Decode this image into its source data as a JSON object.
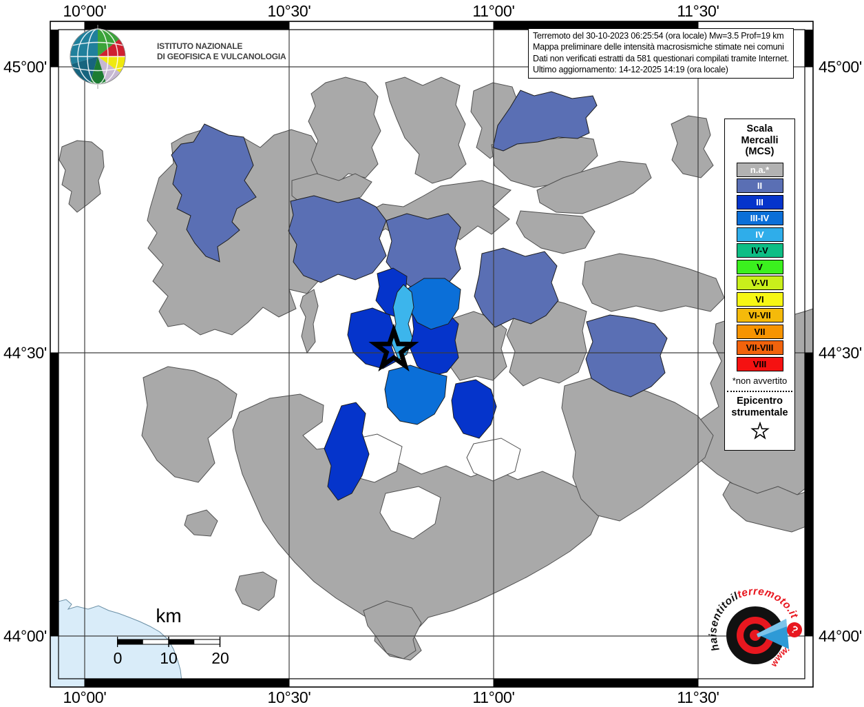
{
  "info_box": {
    "lines": [
      "Terremoto del 30-10-2023 06:25:54 (ora locale) Mw=3.5 Prof=19 km",
      "Mappa preliminare delle intensità macrosismiche stimate nei comuni",
      "Dati non verificati estratti da 581 questionari compilati tramite Internet.",
      "Ultimo aggiornamento: 14-12-2025 14:19 (ora locale)"
    ]
  },
  "legend": {
    "title_lines": [
      "Scala",
      "Mercalli",
      "(MCS)"
    ],
    "items": [
      {
        "label": "n.a.*",
        "color": "#b2b2b2",
        "text_color": "#ffffff"
      },
      {
        "label": "II",
        "color": "#5a6fb4",
        "text_color": "#ffffff"
      },
      {
        "label": "III",
        "color": "#0534cb",
        "text_color": "#ffffff"
      },
      {
        "label": "III-IV",
        "color": "#0b6fd8",
        "text_color": "#ffffff"
      },
      {
        "label": "IV",
        "color": "#2fadea",
        "text_color": "#ffffff"
      },
      {
        "label": "IV-V",
        "color": "#0ebe85",
        "text_color": "#000000"
      },
      {
        "label": "V",
        "color": "#3bf01e",
        "text_color": "#000000"
      },
      {
        "label": "V-VI",
        "color": "#c9ef1b",
        "text_color": "#000000"
      },
      {
        "label": "VI",
        "color": "#f7f714",
        "text_color": "#000000"
      },
      {
        "label": "VI-VII",
        "color": "#f5ba0a",
        "text_color": "#000000"
      },
      {
        "label": "VII",
        "color": "#f79400",
        "text_color": "#000000"
      },
      {
        "label": "VII-VIII",
        "color": "#f2630c",
        "text_color": "#000000"
      },
      {
        "label": "VIII",
        "color": "#f51111",
        "text_color": "#000000"
      }
    ],
    "footnote": "*non avvertito",
    "epicenter_label_line1": "Epicentro",
    "epicenter_label_line2": "strumentale"
  },
  "axes": {
    "lon": [
      "10°00'",
      "10°30'",
      "11°00'",
      "11°30'"
    ],
    "lat": [
      "45°00'",
      "44°30'",
      "44°00'"
    ]
  },
  "scalebar": {
    "unit": "km",
    "ticks": [
      "0",
      "10",
      "20"
    ]
  },
  "ingv_logo": {
    "line1": "ISTITUTO NAZIONALE",
    "line2": "DI GEOFISICA E VULCANOLOGIA"
  },
  "hsit_logo": {
    "text_black": "haisentitoil",
    "text_red": "terremoto.it",
    "www": "www.",
    "question_mark": "?"
  },
  "map_colors": {
    "na": "#a9a9a9",
    "II": "#5a6fb4",
    "III": "#0534cb",
    "III_IV": "#0b6fd8",
    "IV": "#3cb5ec",
    "sea": "#d9ecf9"
  }
}
